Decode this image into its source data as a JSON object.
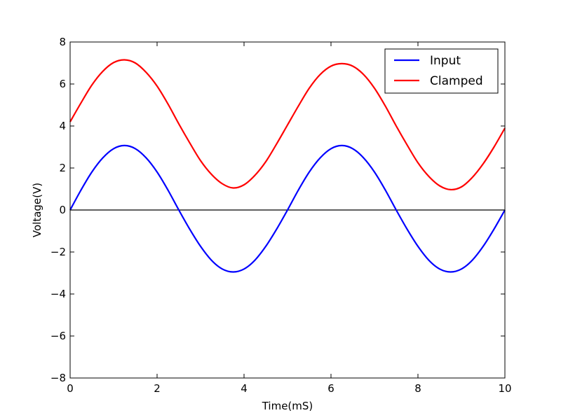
{
  "chart_data": {
    "type": "line",
    "title": "",
    "xlabel": "Time(mS)",
    "ylabel": "Voltage(V)",
    "xlim": [
      0,
      10
    ],
    "ylim": [
      -8,
      8
    ],
    "xticks": [
      0,
      2,
      4,
      6,
      8,
      10
    ],
    "yticks": [
      -8,
      -6,
      -4,
      -2,
      0,
      2,
      4,
      6,
      8
    ],
    "xtick_labels": [
      "0",
      "2",
      "4",
      "6",
      "8",
      "10"
    ],
    "ytick_labels": [
      "−8",
      "−6",
      "−4",
      "−2",
      "0",
      "2",
      "4",
      "6",
      "8"
    ],
    "grid": false,
    "legend_position": "top-right",
    "reference_line": {
      "y": 0,
      "color": "#000000"
    },
    "x": [
      0,
      0.25,
      0.5,
      0.75,
      1,
      1.25,
      1.5,
      1.75,
      2,
      2.25,
      2.5,
      2.75,
      3,
      3.25,
      3.5,
      3.75,
      4,
      4.25,
      4.5,
      4.75,
      5,
      5.25,
      5.5,
      5.75,
      6,
      6.25,
      6.5,
      6.75,
      7,
      7.25,
      7.5,
      7.75,
      8,
      8.25,
      8.5,
      8.75,
      9,
      9.25,
      9.5,
      9.75,
      10
    ],
    "series": [
      {
        "name": "Input",
        "color": "#0000ff",
        "values": [
          0,
          0.95,
          1.81,
          2.48,
          2.92,
          3.07,
          2.92,
          2.48,
          1.81,
          0.95,
          0,
          -0.91,
          -1.73,
          -2.39,
          -2.81,
          -2.95,
          -2.81,
          -2.39,
          -1.73,
          -0.91,
          0,
          0.95,
          1.81,
          2.48,
          2.92,
          3.07,
          2.92,
          2.48,
          1.81,
          0.95,
          0,
          -0.91,
          -1.73,
          -2.39,
          -2.81,
          -2.95,
          -2.81,
          -2.39,
          -1.73,
          -0.91,
          0
        ]
      },
      {
        "name": "Clamped",
        "color": "#ff0000",
        "values": [
          4.2,
          5.1,
          5.95,
          6.6,
          7.02,
          7.15,
          7.0,
          6.55,
          5.9,
          5.05,
          4.1,
          3.2,
          2.35,
          1.7,
          1.25,
          1.05,
          1.2,
          1.65,
          2.3,
          3.15,
          4.05,
          4.95,
          5.8,
          6.45,
          6.85,
          6.97,
          6.85,
          6.45,
          5.8,
          4.95,
          4.0,
          3.1,
          2.25,
          1.6,
          1.15,
          0.97,
          1.1,
          1.55,
          2.2,
          3.0,
          3.9
        ]
      }
    ]
  }
}
